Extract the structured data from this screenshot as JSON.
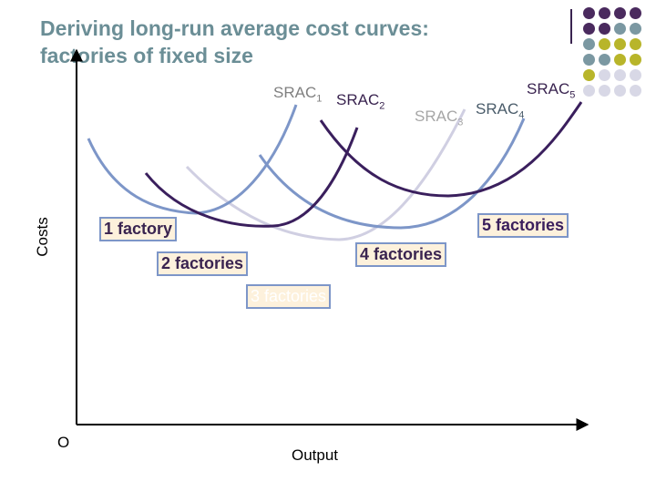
{
  "title": {
    "line1": "Deriving long-run average cost curves:",
    "line2": "factories of fixed size"
  },
  "axes": {
    "y_label": "Costs",
    "x_label": "Output",
    "origin_label": "O"
  },
  "curves": [
    {
      "name": "SRAC",
      "sub": "1",
      "color": "#7d96c8",
      "label_color": "#808080"
    },
    {
      "name": "SRAC",
      "sub": "2",
      "color": "#3a1f5d",
      "label_color": "#3a2450"
    },
    {
      "name": "SRAC",
      "sub": "3",
      "color": "#d0cfe2",
      "label_color": "#a6a6a6"
    },
    {
      "name": "SRAC",
      "sub": "4",
      "color": "#7d96c8",
      "label_color": "#4a5c6a"
    },
    {
      "name": "SRAC",
      "sub": "5",
      "color": "#3a1f5d",
      "label_color": "#3a2450"
    }
  ],
  "factory_labels": [
    "1 factory",
    "2 factories",
    "3 factories",
    "4 factories",
    "5 factories"
  ],
  "colors": {
    "title": "#6b8e96",
    "label_box_fill": "#fdf1dc",
    "label_box_border": "#7d96c8",
    "dark_purple": "#3a1f5d",
    "periwinkle": "#7d96c8",
    "lavender": "#d0cfe2",
    "teal_gray": "#7b98a2",
    "olive": "#b8b52a"
  },
  "decor_dots": [
    "#4a2a5e",
    "#4a2a5e",
    "#4a2a5e",
    "#4a2a5e",
    "#4a2a5e",
    "#4a2a5e",
    "#7b98a2",
    "#7b98a2",
    "#7b98a2",
    "#b8b52a",
    "#b8b52a",
    "#b8b52a",
    "#7b98a2",
    "#7b98a2",
    "#b8b52a",
    "#b8b52a",
    "#b8b52a",
    "#d8d8e6",
    "#d8d8e6",
    "#d8d8e6",
    "#d8d8e6",
    "#d8d8e6",
    "#d8d8e6",
    "#d8d8e6"
  ]
}
